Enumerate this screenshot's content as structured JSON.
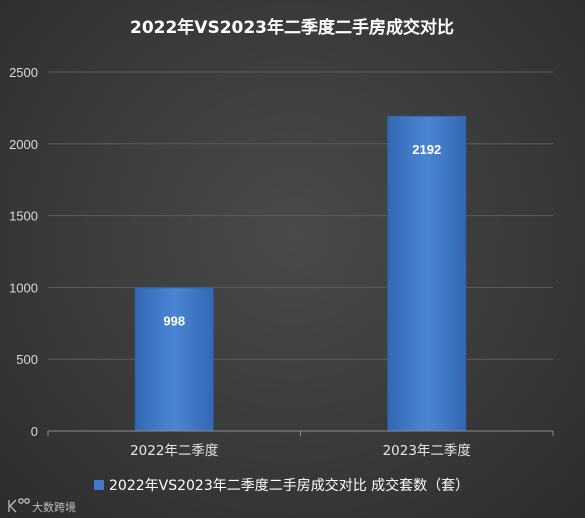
{
  "chart_data": {
    "type": "bar",
    "title": "2022年VS2023年二季度二手房成交对比",
    "categories": [
      "2022年二季度",
      "2023年二季度"
    ],
    "series": [
      {
        "name": "2022年VS2023年二季度二手房成交对比 成交套数（套）",
        "values": [
          998,
          2192
        ]
      }
    ],
    "data_labels": [
      "998",
      "2192"
    ],
    "ylim": [
      0,
      2500
    ],
    "yticks": [
      0,
      500,
      1000,
      1500,
      2000,
      2500
    ],
    "xlabel": "",
    "ylabel": "",
    "grid": true,
    "legend_position": "bottom",
    "colors": {
      "bar": "#3f7bc9",
      "bar_edge": "#2e62a6",
      "grid": "#5c5c5c",
      "background": "#3c3c3c"
    }
  },
  "watermark": {
    "icon": "k-logo-icon",
    "text": "大数跨境"
  }
}
